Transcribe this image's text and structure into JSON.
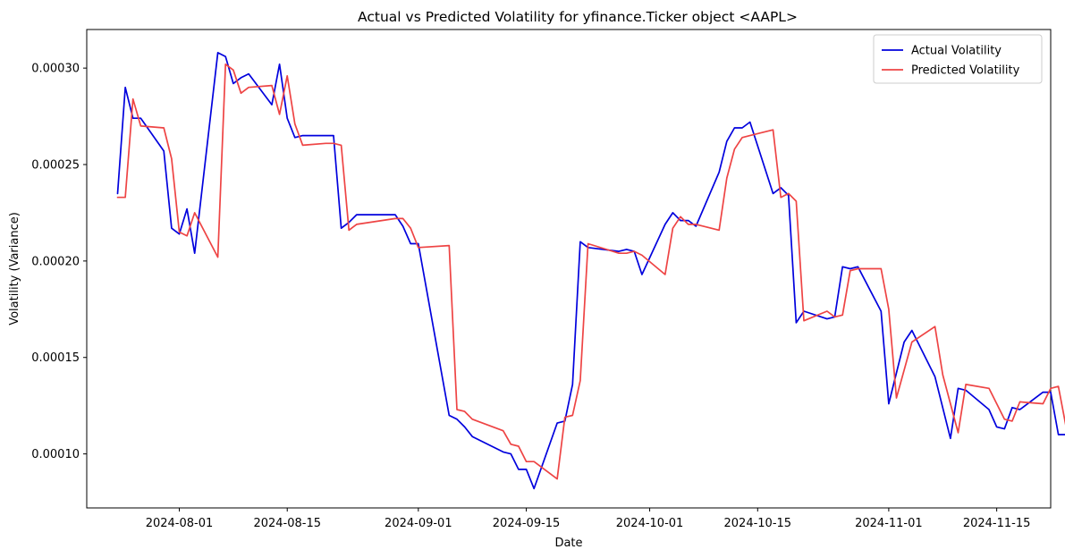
{
  "chart_data": {
    "type": "line",
    "title": "Actual vs Predicted Volatility for yfinance.Ticker object <AAPL>",
    "xlabel": "Date",
    "ylabel": "Volatility (Variance)",
    "xlim": [
      "2024-07-20",
      "2024-11-22"
    ],
    "ylim": [
      7.2e-05,
      0.00032
    ],
    "x_ticks": [
      "2024-08-01",
      "2024-08-15",
      "2024-09-01",
      "2024-09-15",
      "2024-10-01",
      "2024-10-15",
      "2024-11-01",
      "2024-11-15"
    ],
    "y_ticks": [
      0.0001,
      0.00015,
      0.0002,
      0.00025,
      0.0003
    ],
    "grid": false,
    "legend": "top-right",
    "series": [
      {
        "name": "Actual Volatility",
        "color": "#0000dd",
        "points": [
          [
            "2024-07-24",
            0.000235
          ],
          [
            "2024-07-25",
            0.00029
          ],
          [
            "2024-07-26",
            0.000274
          ],
          [
            "2024-07-27",
            0.000274
          ],
          [
            "2024-07-30",
            0.000257
          ],
          [
            "2024-07-31",
            0.000217
          ],
          [
            "2024-08-01",
            0.000214
          ],
          [
            "2024-08-02",
            0.000227
          ],
          [
            "2024-08-03",
            0.000204
          ],
          [
            "2024-08-06",
            0.000308
          ],
          [
            "2024-08-07",
            0.000306
          ],
          [
            "2024-08-08",
            0.000292
          ],
          [
            "2024-08-09",
            0.000295
          ],
          [
            "2024-08-10",
            0.000297
          ],
          [
            "2024-08-13",
            0.000281
          ],
          [
            "2024-08-14",
            0.000302
          ],
          [
            "2024-08-15",
            0.000274
          ],
          [
            "2024-08-16",
            0.000264
          ],
          [
            "2024-08-17",
            0.000265
          ],
          [
            "2024-08-20",
            0.000265
          ],
          [
            "2024-08-21",
            0.000265
          ],
          [
            "2024-08-22",
            0.000217
          ],
          [
            "2024-08-23",
            0.00022
          ],
          [
            "2024-08-24",
            0.000224
          ],
          [
            "2024-08-29",
            0.000224
          ],
          [
            "2024-08-30",
            0.000218
          ],
          [
            "2024-08-31",
            0.000209
          ],
          [
            "2024-09-01",
            0.000209
          ],
          [
            "2024-09-05",
            0.00012
          ],
          [
            "2024-09-06",
            0.000118
          ],
          [
            "2024-09-07",
            0.000114
          ],
          [
            "2024-09-08",
            0.000109
          ],
          [
            "2024-09-12",
            0.000101
          ],
          [
            "2024-09-13",
            0.0001
          ],
          [
            "2024-09-14",
            9.2e-05
          ],
          [
            "2024-09-15",
            9.2e-05
          ],
          [
            "2024-09-16",
            8.2e-05
          ],
          [
            "2024-09-19",
            0.000116
          ],
          [
            "2024-09-20",
            0.000117
          ],
          [
            "2024-09-21",
            0.000136
          ],
          [
            "2024-09-22",
            0.00021
          ],
          [
            "2024-09-23",
            0.000207
          ],
          [
            "2024-09-27",
            0.000205
          ],
          [
            "2024-09-28",
            0.000206
          ],
          [
            "2024-09-29",
            0.000205
          ],
          [
            "2024-09-30",
            0.000193
          ],
          [
            "2024-10-03",
            0.000219
          ],
          [
            "2024-10-04",
            0.000225
          ],
          [
            "2024-10-05",
            0.000221
          ],
          [
            "2024-10-06",
            0.000221
          ],
          [
            "2024-10-07",
            0.000218
          ],
          [
            "2024-10-10",
            0.000246
          ],
          [
            "2024-10-11",
            0.000262
          ],
          [
            "2024-10-12",
            0.000269
          ],
          [
            "2024-10-13",
            0.000269
          ],
          [
            "2024-10-14",
            0.000272
          ],
          [
            "2024-10-17",
            0.000235
          ],
          [
            "2024-10-18",
            0.000238
          ],
          [
            "2024-10-19",
            0.000234
          ],
          [
            "2024-10-20",
            0.000168
          ],
          [
            "2024-10-21",
            0.000174
          ],
          [
            "2024-10-24",
            0.00017
          ],
          [
            "2024-10-25",
            0.000171
          ],
          [
            "2024-10-26",
            0.000197
          ],
          [
            "2024-10-27",
            0.000196
          ],
          [
            "2024-10-28",
            0.000197
          ],
          [
            "2024-10-31",
            0.000174
          ],
          [
            "2024-11-01",
            0.000126
          ],
          [
            "2024-11-03",
            0.000158
          ],
          [
            "2024-11-04",
            0.000164
          ],
          [
            "2024-11-07",
            0.00014
          ],
          [
            "2024-11-09",
            0.000108
          ],
          [
            "2024-11-10",
            0.000134
          ],
          [
            "2024-11-11",
            0.000133
          ],
          [
            "2024-11-14",
            0.000123
          ],
          [
            "2024-11-15",
            0.000114
          ],
          [
            "2024-11-16",
            0.000113
          ],
          [
            "2024-11-17",
            0.000124
          ],
          [
            "2024-11-18",
            0.000123
          ],
          [
            "2024-11-21",
            0.000132
          ],
          [
            "2024-11-22",
            0.000132
          ],
          [
            "2024-11-23",
            0.00011
          ],
          [
            "2024-11-24",
            0.00011
          ],
          [
            "2024-11-25",
            0.000112
          ]
        ]
      },
      {
        "name": "Predicted Volatility",
        "color": "#ee4444",
        "points": [
          [
            "2024-07-24",
            0.000233
          ],
          [
            "2024-07-25",
            0.000233
          ],
          [
            "2024-07-26",
            0.000284
          ],
          [
            "2024-07-27",
            0.00027
          ],
          [
            "2024-07-30",
            0.000269
          ],
          [
            "2024-07-31",
            0.000253
          ],
          [
            "2024-08-01",
            0.000215
          ],
          [
            "2024-08-02",
            0.000213
          ],
          [
            "2024-08-03",
            0.000225
          ],
          [
            "2024-08-06",
            0.000202
          ],
          [
            "2024-08-07",
            0.000302
          ],
          [
            "2024-08-08",
            0.000299
          ],
          [
            "2024-08-09",
            0.000287
          ],
          [
            "2024-08-10",
            0.00029
          ],
          [
            "2024-08-13",
            0.000291
          ],
          [
            "2024-08-14",
            0.000276
          ],
          [
            "2024-08-15",
            0.000296
          ],
          [
            "2024-08-16",
            0.000271
          ],
          [
            "2024-08-17",
            0.00026
          ],
          [
            "2024-08-20",
            0.000261
          ],
          [
            "2024-08-21",
            0.000261
          ],
          [
            "2024-08-22",
            0.00026
          ],
          [
            "2024-08-23",
            0.000216
          ],
          [
            "2024-08-24",
            0.000219
          ],
          [
            "2024-08-29",
            0.000222
          ],
          [
            "2024-08-30",
            0.000222
          ],
          [
            "2024-08-31",
            0.000217
          ],
          [
            "2024-09-01",
            0.000207
          ],
          [
            "2024-09-05",
            0.000208
          ],
          [
            "2024-09-06",
            0.000123
          ],
          [
            "2024-09-07",
            0.000122
          ],
          [
            "2024-09-08",
            0.000118
          ],
          [
            "2024-09-12",
            0.000112
          ],
          [
            "2024-09-13",
            0.000105
          ],
          [
            "2024-09-14",
            0.000104
          ],
          [
            "2024-09-15",
            9.6e-05
          ],
          [
            "2024-09-16",
            9.6e-05
          ],
          [
            "2024-09-19",
            8.7e-05
          ],
          [
            "2024-09-20",
            0.000119
          ],
          [
            "2024-09-21",
            0.00012
          ],
          [
            "2024-09-22",
            0.000138
          ],
          [
            "2024-09-23",
            0.000209
          ],
          [
            "2024-09-27",
            0.000204
          ],
          [
            "2024-09-28",
            0.000204
          ],
          [
            "2024-09-29",
            0.000205
          ],
          [
            "2024-09-30",
            0.000203
          ],
          [
            "2024-10-03",
            0.000193
          ],
          [
            "2024-10-04",
            0.000217
          ],
          [
            "2024-10-05",
            0.000223
          ],
          [
            "2024-10-06",
            0.000219
          ],
          [
            "2024-10-07",
            0.000219
          ],
          [
            "2024-10-10",
            0.000216
          ],
          [
            "2024-10-11",
            0.000243
          ],
          [
            "2024-10-12",
            0.000258
          ],
          [
            "2024-10-13",
            0.000264
          ],
          [
            "2024-10-14",
            0.000265
          ],
          [
            "2024-10-17",
            0.000268
          ],
          [
            "2024-10-18",
            0.000233
          ],
          [
            "2024-10-19",
            0.000235
          ],
          [
            "2024-10-20",
            0.000231
          ],
          [
            "2024-10-21",
            0.000169
          ],
          [
            "2024-10-24",
            0.000174
          ],
          [
            "2024-10-25",
            0.000171
          ],
          [
            "2024-10-26",
            0.000172
          ],
          [
            "2024-10-27",
            0.000195
          ],
          [
            "2024-10-28",
            0.000196
          ],
          [
            "2024-10-31",
            0.000196
          ],
          [
            "2024-11-01",
            0.000175
          ],
          [
            "2024-11-02",
            0.000129
          ],
          [
            "2024-11-04",
            0.000158
          ],
          [
            "2024-11-07",
            0.000166
          ],
          [
            "2024-11-08",
            0.000141
          ],
          [
            "2024-11-10",
            0.000111
          ],
          [
            "2024-11-11",
            0.000136
          ],
          [
            "2024-11-14",
            0.000134
          ],
          [
            "2024-11-16",
            0.000118
          ],
          [
            "2024-11-17",
            0.000117
          ],
          [
            "2024-11-18",
            0.000127
          ],
          [
            "2024-11-21",
            0.000126
          ],
          [
            "2024-11-22",
            0.000134
          ],
          [
            "2024-11-23",
            0.000135
          ],
          [
            "2024-11-24",
            0.000114
          ],
          [
            "2024-11-25",
            0.000114
          ]
        ]
      }
    ]
  }
}
